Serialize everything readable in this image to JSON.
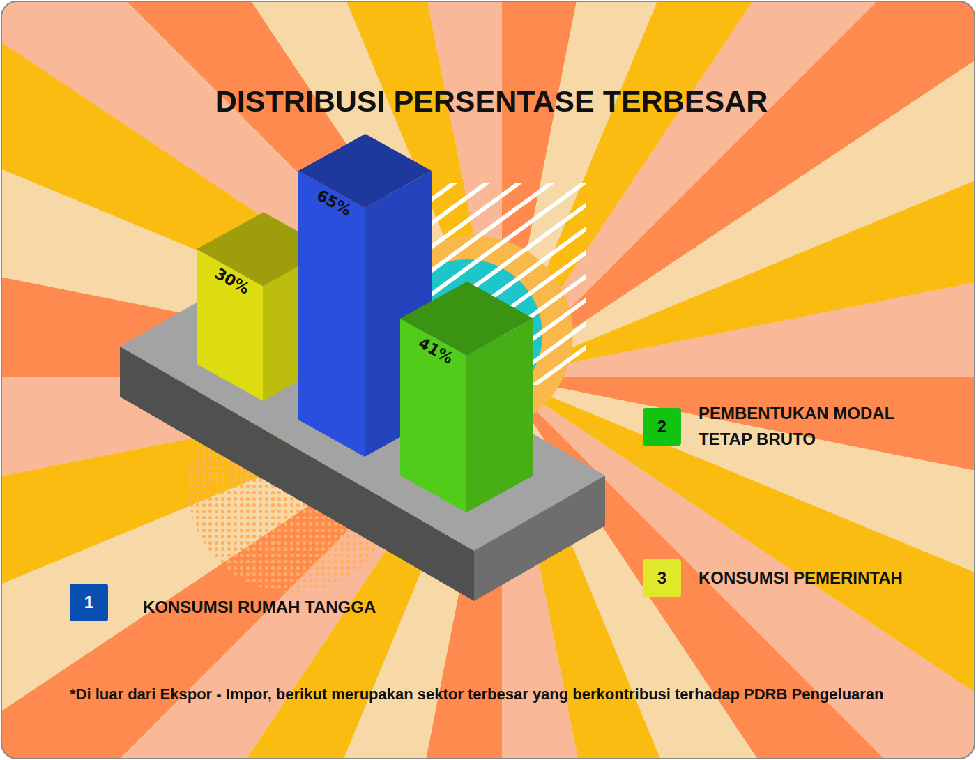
{
  "chart_data": {
    "type": "bar",
    "title": "DISTRIBUSI PERSENTASE TERBESAR",
    "categories": [
      "KONSUMSI PEMERINTAH",
      "KONSUMSI RUMAH TANGGA",
      "PEMBENTUKAN MODAL TETAP BRUTO"
    ],
    "values": [
      30,
      65,
      41
    ],
    "value_labels": [
      "30%",
      "65%",
      "41%"
    ],
    "ranks": [
      3,
      1,
      2
    ],
    "colors": [
      "#dcdc10",
      "#2a4fdc",
      "#52cc1a"
    ],
    "data_labels": true,
    "tick_labels": false,
    "footnote": "*Di luar dari Ekspor - Impor, berikut merupakan sektor terbesar yang berkontribusi terhadap PDRB Pengeluaran"
  }
}
